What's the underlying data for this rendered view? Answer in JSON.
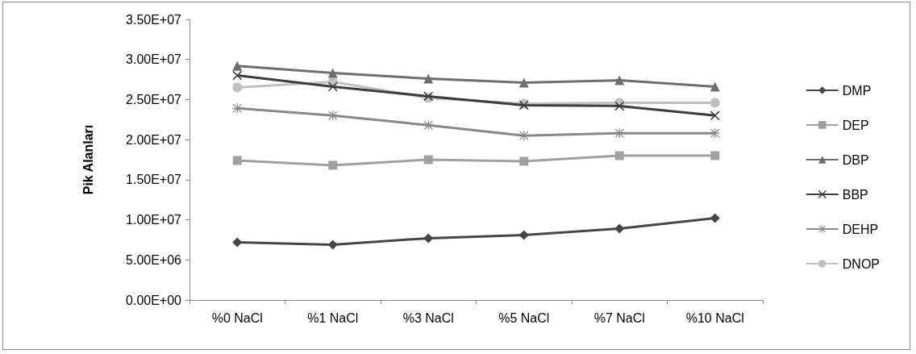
{
  "chart_data": {
    "type": "line",
    "ylabel": "Pik Alanları",
    "categories": [
      "%0 NaCl",
      "%1 NaCl",
      "%3 NaCl",
      "%5 NaCl",
      "%7 NaCl",
      "%10 NaCl"
    ],
    "series": [
      {
        "name": "DMP",
        "color": "#464646",
        "marker": "diamond",
        "values": [
          7200000,
          6900000,
          7700000,
          8100000,
          8900000,
          10200000
        ]
      },
      {
        "name": "DEP",
        "color": "#a0a0a0",
        "marker": "square",
        "values": [
          17400000,
          16800000,
          17500000,
          17300000,
          18000000,
          18000000
        ]
      },
      {
        "name": "DBP",
        "color": "#6e6e6e",
        "marker": "triangle",
        "values": [
          29200000,
          28300000,
          27600000,
          27100000,
          27400000,
          26600000
        ]
      },
      {
        "name": "BBP",
        "color": "#3c3c3c",
        "marker": "cross",
        "values": [
          28000000,
          26600000,
          25400000,
          24300000,
          24200000,
          23000000
        ]
      },
      {
        "name": "DEHP",
        "color": "#888888",
        "marker": "star",
        "values": [
          23900000,
          23000000,
          21800000,
          20500000,
          20800000,
          20800000
        ]
      },
      {
        "name": "DNOP",
        "color": "#c0c0c0",
        "marker": "circle",
        "values": [
          26500000,
          27200000,
          25200000,
          24500000,
          24600000,
          24600000
        ]
      }
    ],
    "ylim": [
      0,
      35000000
    ],
    "yticks": [
      {
        "value": 0,
        "label": "0.00E+00"
      },
      {
        "value": 5000000,
        "label": "5.00E+06"
      },
      {
        "value": 10000000,
        "label": "1.00E+07"
      },
      {
        "value": 15000000,
        "label": "1.50E+07"
      },
      {
        "value": 20000000,
        "label": "2.00E+07"
      },
      {
        "value": 25000000,
        "label": "2.50E+07"
      },
      {
        "value": 30000000,
        "label": "3.00E+07"
      },
      {
        "value": 35000000,
        "label": "3.50E+07"
      }
    ],
    "grid": false,
    "legend": "right",
    "line_style": "solid"
  }
}
